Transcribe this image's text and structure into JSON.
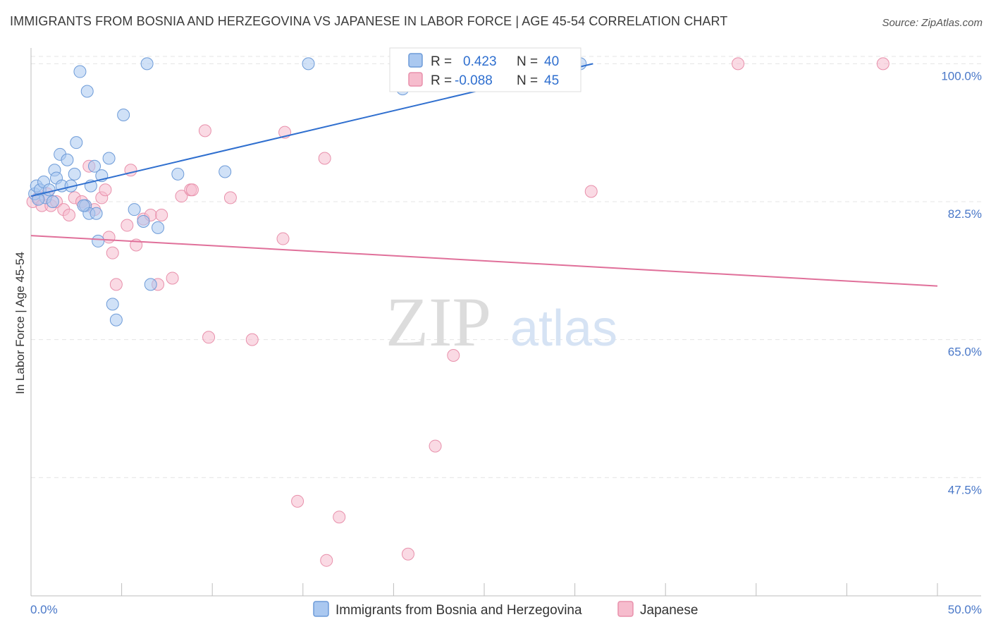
{
  "title": "IMMIGRANTS FROM BOSNIA AND HERZEGOVINA VS JAPANESE IN LABOR FORCE | AGE 45-54 CORRELATION CHART",
  "source": "Source: ZipAtlas.com",
  "colors": {
    "blue_fill": "#aac8f0",
    "blue_stroke": "#6d9bd8",
    "blue_line": "#2f6fcf",
    "pink_fill": "#f6bccd",
    "pink_stroke": "#e890ab",
    "pink_line": "#e0709a",
    "axis_text": "#4a78c8",
    "grid": "#e4e4e4"
  },
  "chart_data": {
    "type": "scatter",
    "title": "IMMIGRANTS FROM BOSNIA AND HERZEGOVINA VS JAPANESE IN LABOR FORCE | AGE 45-54 CORRELATION CHART",
    "xlabel": "",
    "ylabel": "In Labor Force | Age 45-54",
    "xlim": [
      0,
      50
    ],
    "ylim": [
      32.5,
      102
    ],
    "x_tick_labels": [
      "0.0%",
      "50.0%"
    ],
    "y_ticks": [
      47.5,
      65.0,
      82.5,
      100.0
    ],
    "y_tick_labels": [
      "47.5%",
      "65.0%",
      "82.5%",
      "100.0%"
    ],
    "watermark": [
      "ZIP",
      "atlas"
    ],
    "legend": {
      "r_label": "R =",
      "n_label": "N =",
      "entries": [
        {
          "series": "Immigrants from Bosnia and Herzegovina",
          "r": "0.423",
          "n": "40"
        },
        {
          "series": "Japanese",
          "r": "-0.088",
          "n": "45"
        }
      ]
    },
    "series": [
      {
        "name": "Immigrants from Bosnia and Herzegovina",
        "color": "blue",
        "trend": {
          "x": [
            0,
            31
          ],
          "y": [
            83.2,
            100.0
          ]
        },
        "points": [
          [
            0.2,
            83.5
          ],
          [
            0.3,
            84.5
          ],
          [
            0.5,
            84.0
          ],
          [
            0.7,
            85.0
          ],
          [
            0.8,
            83.0
          ],
          [
            1.0,
            84.0
          ],
          [
            1.2,
            82.5
          ],
          [
            1.3,
            86.5
          ],
          [
            1.4,
            85.5
          ],
          [
            1.6,
            88.5
          ],
          [
            1.7,
            84.5
          ],
          [
            2.0,
            87.8
          ],
          [
            2.2,
            84.5
          ],
          [
            2.4,
            86.0
          ],
          [
            2.5,
            90.0
          ],
          [
            2.7,
            99.0
          ],
          [
            3.0,
            82.0
          ],
          [
            3.1,
            96.5
          ],
          [
            3.2,
            81.0
          ],
          [
            3.3,
            84.5
          ],
          [
            3.5,
            87.0
          ],
          [
            3.6,
            81.0
          ],
          [
            3.7,
            77.5
          ],
          [
            3.9,
            85.8
          ],
          [
            4.3,
            88.0
          ],
          [
            4.5,
            69.5
          ],
          [
            4.7,
            67.5
          ],
          [
            5.1,
            93.5
          ],
          [
            5.7,
            81.5
          ],
          [
            6.2,
            80.0
          ],
          [
            6.4,
            100.0
          ],
          [
            6.6,
            72.0
          ],
          [
            7.0,
            79.2
          ],
          [
            8.1,
            86.0
          ],
          [
            10.7,
            86.3
          ],
          [
            15.3,
            100.0
          ],
          [
            20.5,
            96.8
          ],
          [
            30.3,
            100.0
          ],
          [
            0.4,
            82.8
          ],
          [
            2.9,
            82.0
          ]
        ]
      },
      {
        "name": "Japanese",
        "color": "pink",
        "trend": {
          "x": [
            0,
            50
          ],
          "y": [
            78.2,
            71.8
          ]
        },
        "points": [
          [
            0.1,
            82.5
          ],
          [
            0.4,
            83.0
          ],
          [
            0.6,
            82.0
          ],
          [
            0.9,
            83.5
          ],
          [
            1.1,
            82.0
          ],
          [
            1.4,
            82.5
          ],
          [
            1.8,
            81.5
          ],
          [
            2.1,
            80.8
          ],
          [
            2.4,
            83.0
          ],
          [
            2.8,
            82.5
          ],
          [
            3.0,
            82.0
          ],
          [
            3.2,
            87.0
          ],
          [
            3.5,
            81.5
          ],
          [
            3.9,
            83.0
          ],
          [
            4.1,
            84.0
          ],
          [
            4.3,
            78.0
          ],
          [
            4.5,
            76.0
          ],
          [
            4.7,
            72.0
          ],
          [
            5.3,
            79.5
          ],
          [
            5.5,
            86.5
          ],
          [
            5.8,
            77.0
          ],
          [
            6.2,
            80.3
          ],
          [
            6.6,
            80.8
          ],
          [
            7.0,
            72.0
          ],
          [
            7.2,
            80.8
          ],
          [
            7.8,
            72.8
          ],
          [
            8.3,
            83.2
          ],
          [
            8.8,
            84.0
          ],
          [
            8.9,
            84.0
          ],
          [
            9.6,
            91.5
          ],
          [
            9.8,
            65.3
          ],
          [
            11.0,
            83.0
          ],
          [
            12.2,
            65.0
          ],
          [
            13.9,
            77.8
          ],
          [
            14.0,
            91.3
          ],
          [
            14.7,
            44.5
          ],
          [
            16.2,
            88.0
          ],
          [
            16.3,
            37.0
          ],
          [
            17.0,
            42.5
          ],
          [
            20.8,
            37.8
          ],
          [
            22.3,
            51.5
          ],
          [
            23.3,
            63.0
          ],
          [
            30.9,
            83.8
          ],
          [
            39.0,
            100.0
          ],
          [
            47.0,
            100.0
          ]
        ]
      }
    ]
  }
}
